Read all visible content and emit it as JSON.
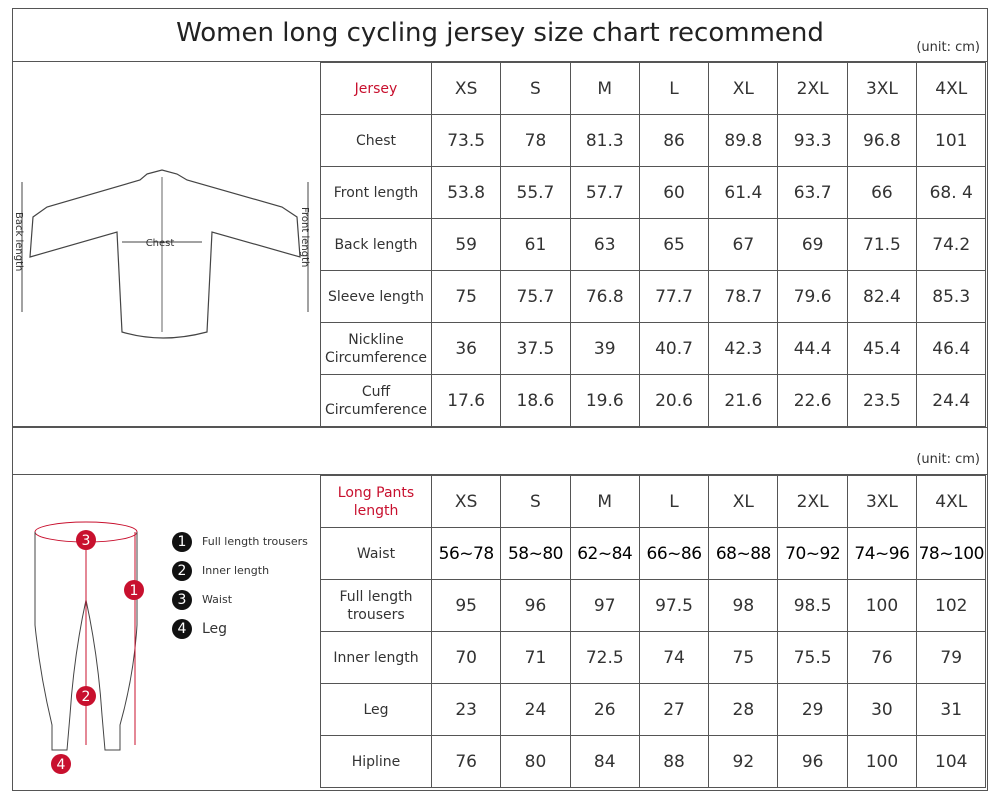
{
  "title": "Women long cycling jersey size chart recommend",
  "unit": "(unit: cm)",
  "sizes": [
    "XS",
    "S",
    "M",
    "L",
    "XL",
    "2XL",
    "3XL",
    "4XL"
  ],
  "jersey": {
    "header": "Jersey",
    "diagram_labels": {
      "chest": "Chest",
      "back_length": "Back length",
      "front_length": "Front length"
    },
    "rows": [
      {
        "label": "Chest",
        "values": [
          "73.5",
          "78",
          "81.3",
          "86",
          "89.8",
          "93.3",
          "96.8",
          "101"
        ]
      },
      {
        "label": "Front length",
        "values": [
          "53.8",
          "55.7",
          "57.7",
          "60",
          "61.4",
          "63.7",
          "66",
          "68. 4"
        ]
      },
      {
        "label": "Back length",
        "values": [
          "59",
          "61",
          "63",
          "65",
          "67",
          "69",
          "71.5",
          "74.2"
        ]
      },
      {
        "label": "Sleeve length",
        "values": [
          "75",
          "75.7",
          "76.8",
          "77.7",
          "78.7",
          "79.6",
          "82.4",
          "85.3"
        ]
      },
      {
        "label": "Nickline Circumference",
        "values": [
          "36",
          "37.5",
          "39",
          "40.7",
          "42.3",
          "44.4",
          "45.4",
          "46.4"
        ]
      },
      {
        "label": "Cuff Circumference",
        "values": [
          "17.6",
          "18.6",
          "19.6",
          "20.6",
          "21.6",
          "22.6",
          "23.5",
          "24.4"
        ]
      }
    ]
  },
  "pants": {
    "header": "Long Pants length",
    "legend": [
      {
        "num": "1",
        "label": "Full length trousers"
      },
      {
        "num": "2",
        "label": "Inner length"
      },
      {
        "num": "3",
        "label": "Waist"
      },
      {
        "num": "4",
        "label": "Leg"
      }
    ],
    "rows": [
      {
        "label": "Waist",
        "values": [
          "56~78",
          "58~80",
          "62~84",
          "66~86",
          "68~88",
          "70~92",
          "74~96",
          "78~100"
        ]
      },
      {
        "label": "Full length trousers",
        "values": [
          "95",
          "96",
          "97",
          "97.5",
          "98",
          "98.5",
          "100",
          "102"
        ]
      },
      {
        "label": "Inner length",
        "values": [
          "70",
          "71",
          "72.5",
          "74",
          "75",
          "75.5",
          "76",
          "79"
        ]
      },
      {
        "label": "Leg",
        "values": [
          "23",
          "24",
          "26",
          "27",
          "28",
          "29",
          "30",
          "31"
        ]
      },
      {
        "label": "Hipline",
        "values": [
          "76",
          "80",
          "84",
          "88",
          "92",
          "96",
          "100",
          "104"
        ]
      }
    ]
  },
  "colors": {
    "accent": "#c8102e",
    "border": "#555555"
  }
}
